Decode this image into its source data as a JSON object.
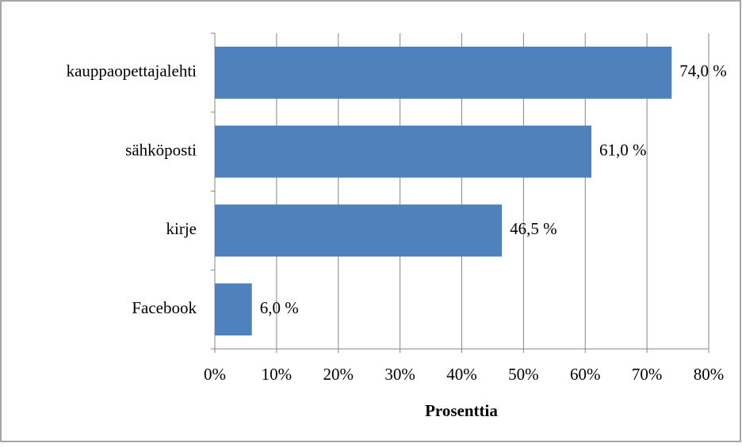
{
  "chart_data": {
    "type": "bar",
    "orientation": "horizontal",
    "categories": [
      "kauppaopettajalehti",
      "sähköposti",
      "kirje",
      "Facebook"
    ],
    "values": [
      74.0,
      61.0,
      46.5,
      6.0
    ],
    "value_labels": [
      "74,0 %",
      "61,0 %",
      "46,5 %",
      "6,0 %"
    ],
    "color": "#4f81bd",
    "x_label": "Prosenttia",
    "xlim": [
      0,
      80
    ],
    "xticks": [
      {
        "value": 0,
        "label": "0%"
      },
      {
        "value": 10,
        "label": "10%"
      },
      {
        "value": 20,
        "label": "20%"
      },
      {
        "value": 30,
        "label": "30%"
      },
      {
        "value": 40,
        "label": "40%"
      },
      {
        "value": 50,
        "label": "50%"
      },
      {
        "value": 60,
        "label": "60%"
      },
      {
        "value": 70,
        "label": "70%"
      },
      {
        "value": 80,
        "label": "80%"
      }
    ],
    "grid": true
  }
}
